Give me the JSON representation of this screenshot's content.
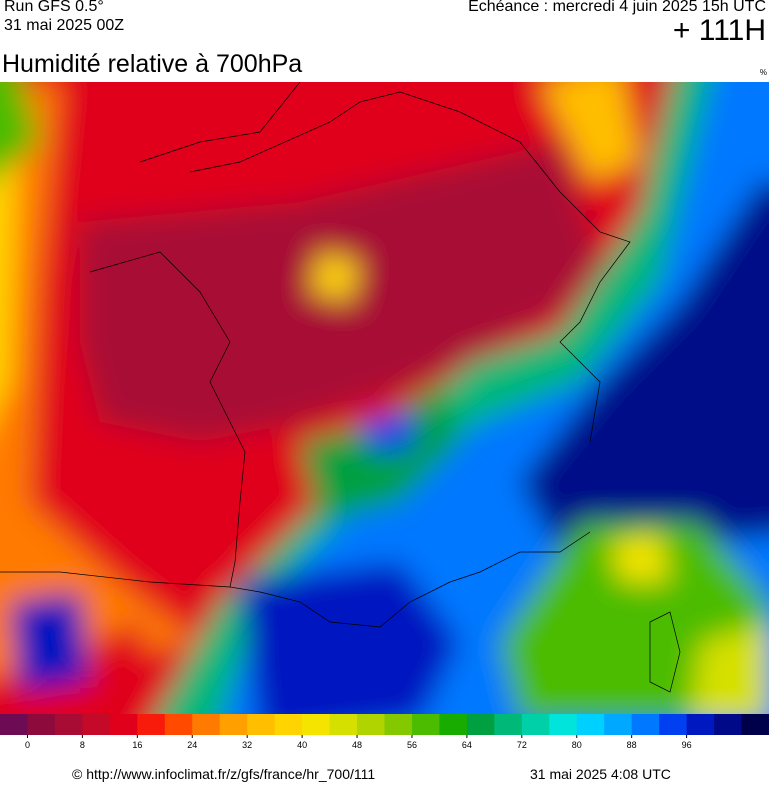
{
  "header": {
    "run": "Run GFS 0.5°",
    "run_date": "31 mai 2025 00Z",
    "forecast": "Echéance : mercredi 4 juin 2025 15h UTC",
    "lead": "+ 111H",
    "title": "Humidité relative à 700hPa",
    "unit": "%"
  },
  "legend": {
    "colors": [
      "#6e0b55",
      "#8c0a3c",
      "#a80c34",
      "#c40a28",
      "#e0001c",
      "#f81a0a",
      "#ff4a00",
      "#ff7a00",
      "#ffa000",
      "#ffbe00",
      "#ffd400",
      "#f4e400",
      "#d6e000",
      "#b0d400",
      "#84c800",
      "#4cbc00",
      "#18ac00",
      "#00a040",
      "#00b878",
      "#00d0a8",
      "#00e4dc",
      "#00d0ff",
      "#00a8ff",
      "#0078ff",
      "#0040f0",
      "#0018c0",
      "#000a88",
      "#00004a"
    ],
    "ticks": [
      0,
      8,
      16,
      24,
      32,
      40,
      48,
      56,
      64,
      72,
      80,
      88,
      96
    ]
  },
  "footer": {
    "source": "© http://www.infoclimat.fr/z/gfs/france/hr_700/111",
    "time": "31 mai 2025  4:08 UTC"
  }
}
